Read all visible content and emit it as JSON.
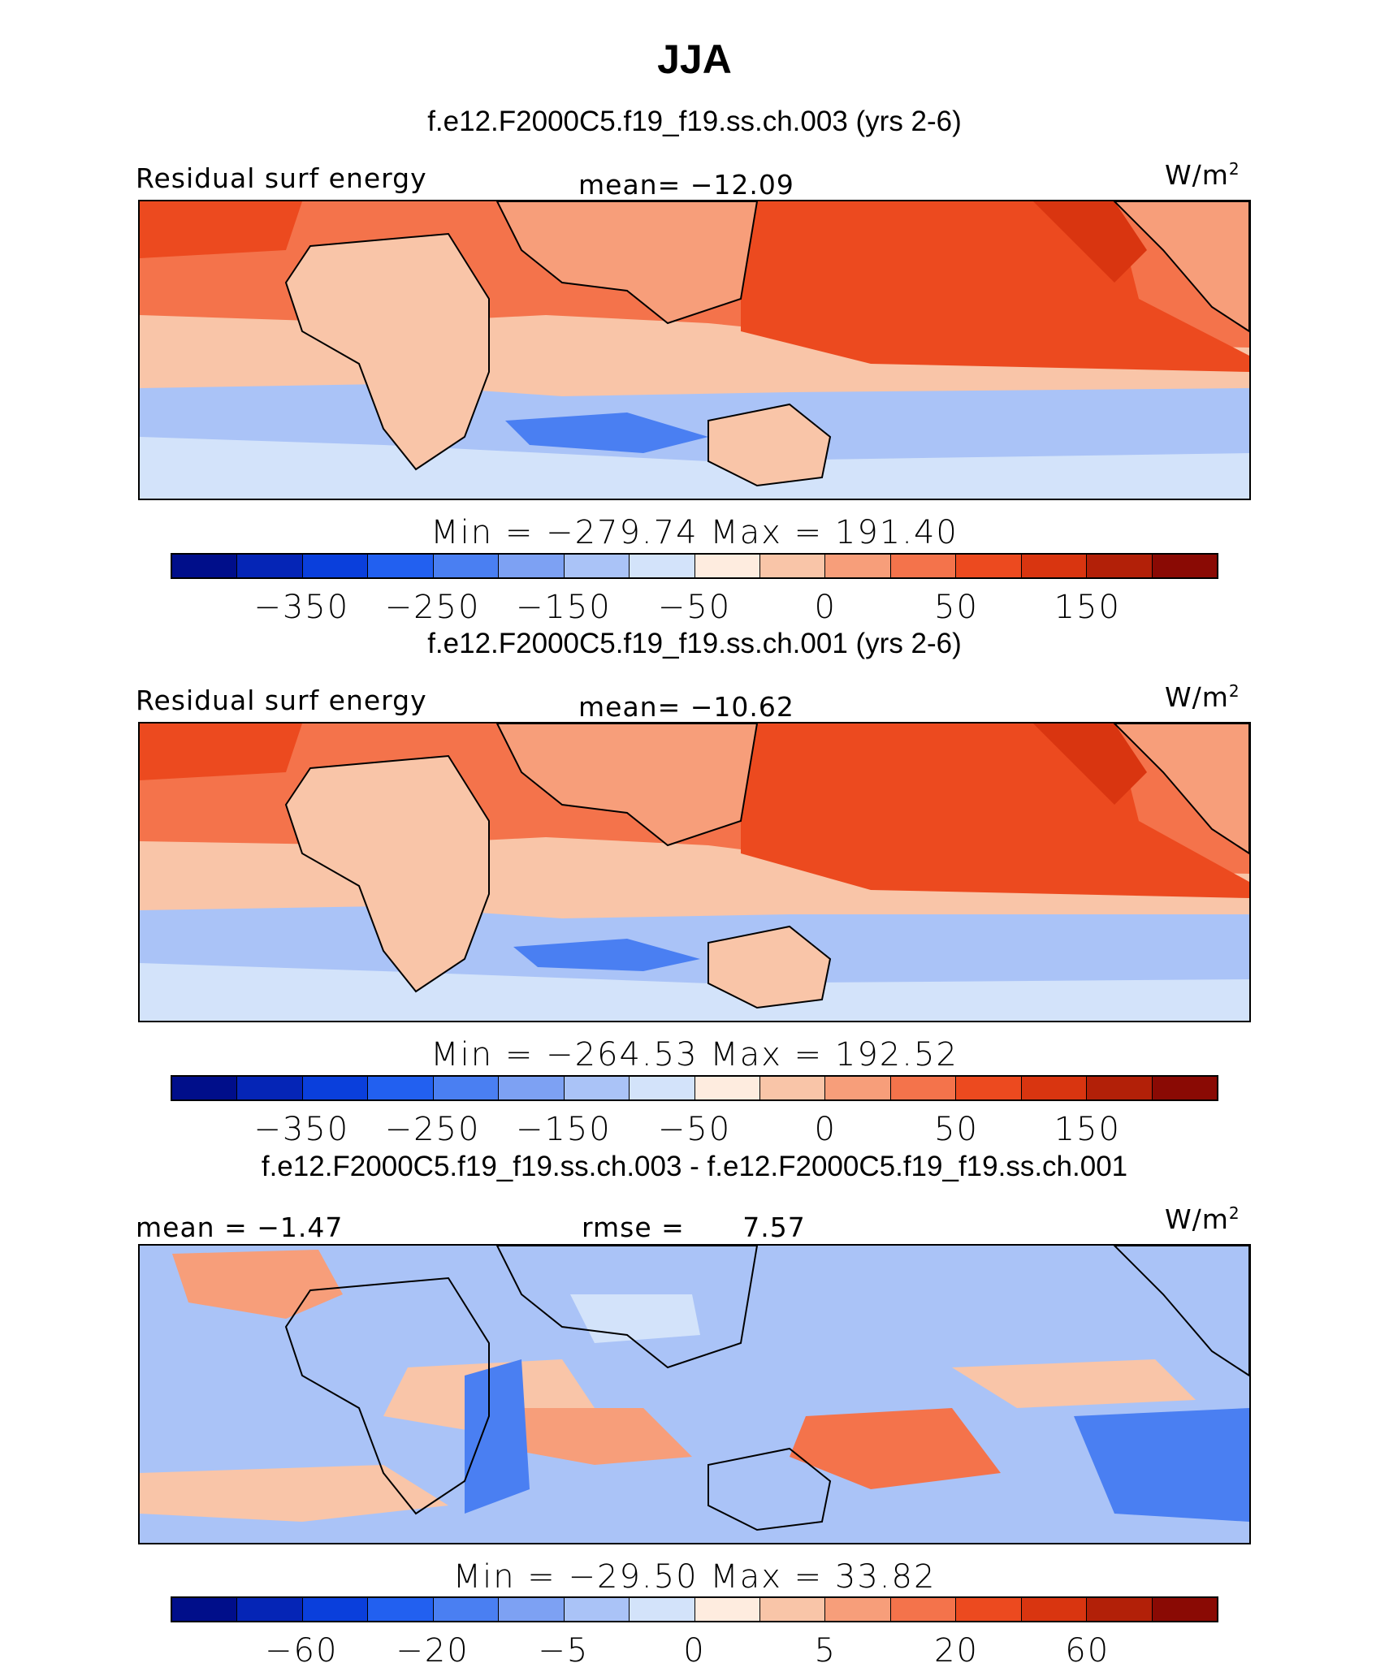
{
  "figure": {
    "title": "JJA",
    "variable_label": "Residual surf energy",
    "units": "W/m",
    "units_exponent": "2"
  },
  "chart_data": [
    {
      "type": "heatmap",
      "title": "f.e12.F2000C5.f19_f19.ss.ch.003 (yrs 2-6)",
      "left_label": "Residual surf energy",
      "mean_label": "mean= ",
      "mean": "−12.09",
      "units": "W/m",
      "units_exponent": "2",
      "min_label": "Min  =  ",
      "min": "−279.74",
      "max_label": "  Max  =  ",
      "max": "191.40",
      "colorbar_ticks": [
        "−350",
        "−250",
        "−150",
        "−50",
        "0",
        "50",
        "150"
      ],
      "colorbar_levels": [
        "<−350",
        "−350",
        "−300",
        "−250",
        "−200",
        "−150",
        "−100",
        "−50",
        "−25",
        "0",
        "25",
        "50",
        "100",
        "150",
        "200",
        ">200"
      ]
    },
    {
      "type": "heatmap",
      "title": "f.e12.F2000C5.f19_f19.ss.ch.001 (yrs 2-6)",
      "left_label": "Residual surf energy",
      "mean_label": "mean= ",
      "mean": "−10.62",
      "units": "W/m",
      "units_exponent": "2",
      "min_label": "Min  =  ",
      "min": "−264.53",
      "max_label": "  Max  =  ",
      "max": "192.52",
      "colorbar_ticks": [
        "−350",
        "−250",
        "−150",
        "−50",
        "0",
        "50",
        "150"
      ],
      "colorbar_levels": [
        "<−350",
        "−350",
        "−300",
        "−250",
        "−200",
        "−150",
        "−100",
        "−50",
        "−25",
        "0",
        "25",
        "50",
        "100",
        "150",
        "200",
        ">200"
      ]
    },
    {
      "type": "heatmap",
      "title": "f.e12.F2000C5.f19_f19.ss.ch.003 - f.e12.F2000C5.f19_f19.ss.ch.001",
      "left_label": "mean =  ",
      "mean": "−1.47",
      "rmse_label": "rmse  =  ",
      "rmse": "7.57",
      "units": "W/m",
      "units_exponent": "2",
      "min_label": "Min  =  ",
      "min": "−29.50",
      "max_label": "  Max  =  ",
      "max": "33.82",
      "colorbar_ticks": [
        "−60",
        "−20",
        "−5",
        "0",
        "5",
        "20",
        "60"
      ],
      "colorbar_levels": [
        "<−60",
        "−60",
        "−40",
        "−20",
        "−10",
        "−5",
        "−2",
        "0",
        "2",
        "5",
        "10",
        "20",
        "40",
        "60",
        "80",
        ">80"
      ]
    }
  ],
  "colors": {
    "palette": [
      "#000e8a",
      "#0525b6",
      "#0a3fdc",
      "#2260f0",
      "#4a7ff2",
      "#7da1f3",
      "#aac3f7",
      "#d3e3fa",
      "#feecdf",
      "#f9c5a8",
      "#f79e7a",
      "#f4734b",
      "#ec4a1f",
      "#d93510",
      "#b22008",
      "#8a0a04"
    ],
    "land_outline": "#000000"
  }
}
